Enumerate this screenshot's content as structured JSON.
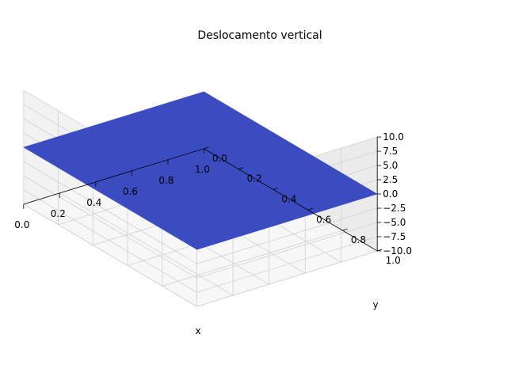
{
  "chart_data": {
    "type": "surface3d",
    "title": "Deslocamento vertical",
    "xlabel": "x",
    "ylabel": "y",
    "zlabel": "",
    "xlim": [
      0.0,
      1.0
    ],
    "ylim": [
      0.0,
      1.0
    ],
    "zlim": [
      -10.0,
      10.0
    ],
    "x_ticks": [
      "0.0",
      "0.2",
      "0.4",
      "0.6",
      "0.8",
      "1.0"
    ],
    "y_ticks": [
      "0.0",
      "0.2",
      "0.4",
      "0.6",
      "0.8",
      "1.0"
    ],
    "z_ticks": [
      "−10.0",
      "−7.5",
      "−5.0",
      "−2.5",
      "0.0",
      "2.5",
      "5.0",
      "7.5",
      "10.0"
    ],
    "surface": {
      "x": [
        0.0,
        1.0
      ],
      "y": [
        0.0,
        1.0
      ],
      "z": [
        [
          0.0,
          0.0
        ],
        [
          0.0,
          0.0
        ]
      ],
      "color": "#3b4cc0"
    },
    "grid": true,
    "pane_colors": {
      "left": "#f2f2f2",
      "back": "#ebebeb",
      "floor": "#f7f7f7",
      "grid": "#d0d0d0"
    }
  }
}
